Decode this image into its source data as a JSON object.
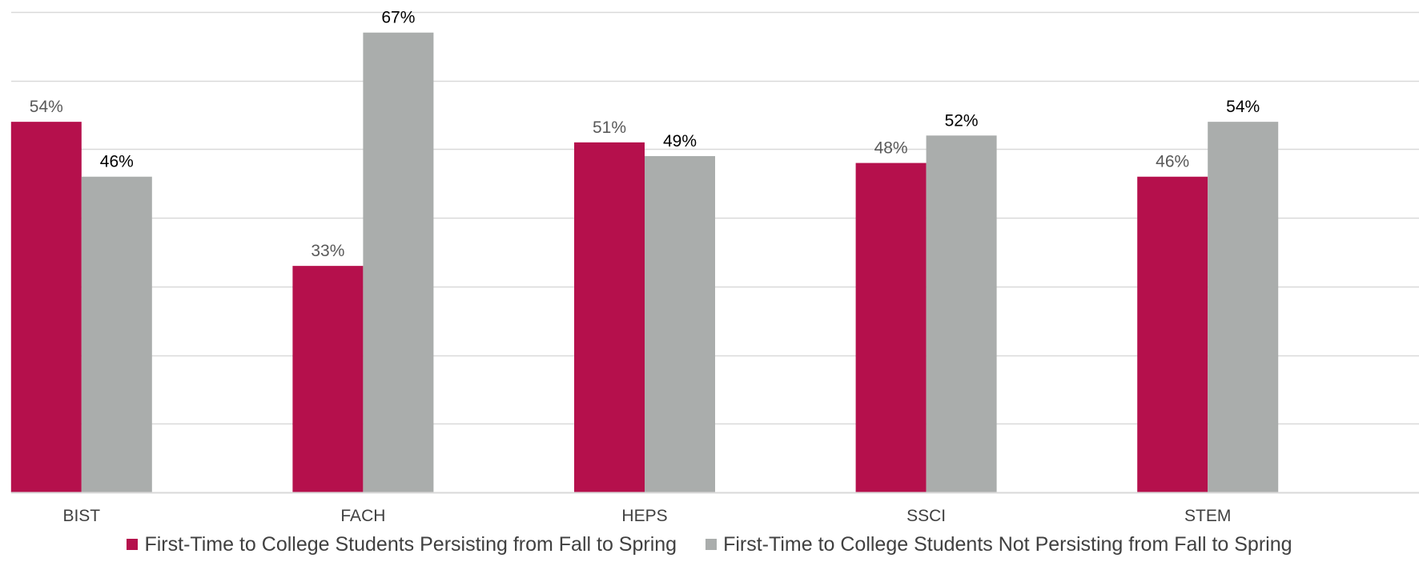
{
  "chart_data": {
    "type": "bar",
    "categories": [
      "BIST",
      "FACH",
      "HEPS",
      "SSCI",
      "STEM"
    ],
    "series": [
      {
        "name": "First-Time to College Students Persisting from Fall to Spring",
        "values": [
          54,
          33,
          51,
          48,
          46
        ],
        "labels": [
          "54%",
          "33%",
          "51%",
          "48%",
          "46%"
        ],
        "color": "#B5104C",
        "label_color": "#595959"
      },
      {
        "name": "First-Time to College Students Not Persisting from Fall to Spring",
        "values": [
          46,
          67,
          49,
          52,
          54
        ],
        "labels": [
          "46%",
          "67%",
          "49%",
          "52%",
          "54%"
        ],
        "color": "#AAADAC",
        "label_color": "#000000"
      }
    ],
    "ylim": [
      0,
      70
    ],
    "grid": true,
    "legend_position": "bottom",
    "unit": "%"
  }
}
